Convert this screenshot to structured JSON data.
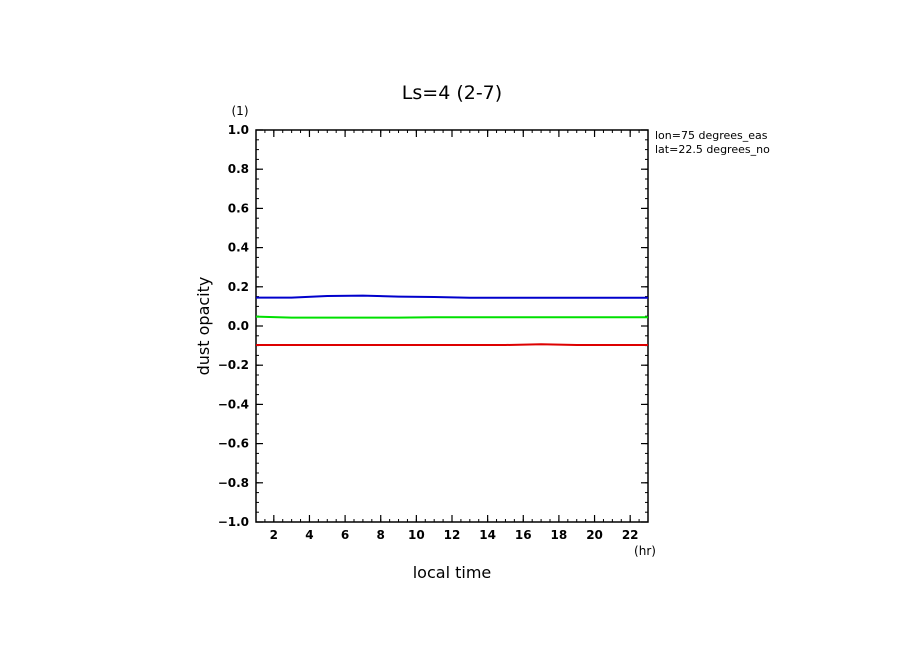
{
  "chart_data": {
    "type": "line",
    "title": "Ls=4 (2-7)",
    "xlabel": "local time",
    "ylabel": "dust opacity",
    "x_unit": "(hr)",
    "y_unit": "(1)",
    "annotations": [
      "lon=75 degrees_eas",
      "lat=22.5 degrees_no"
    ],
    "xlim": [
      1,
      23
    ],
    "ylim": [
      -1.0,
      1.0
    ],
    "x_ticks": [
      2,
      4,
      6,
      8,
      10,
      12,
      14,
      16,
      18,
      20,
      22
    ],
    "y_ticks": [
      "−1.0",
      "−0.8",
      "−0.6",
      "−0.4",
      "−0.2",
      "0.0",
      "0.2",
      "0.4",
      "0.6",
      "0.8",
      "1.0"
    ],
    "grid": false,
    "x": [
      1,
      3,
      5,
      7,
      9,
      11,
      13,
      15,
      17,
      19,
      21,
      23
    ],
    "series": [
      {
        "color": "#0000cc",
        "values": [
          0.145,
          0.145,
          0.153,
          0.155,
          0.15,
          0.148,
          0.144,
          0.144,
          0.144,
          0.144,
          0.144,
          0.144
        ]
      },
      {
        "color": "#00e000",
        "values": [
          0.048,
          0.043,
          0.043,
          0.043,
          0.043,
          0.045,
          0.045,
          0.045,
          0.045,
          0.045,
          0.045,
          0.045
        ]
      },
      {
        "color": "#dd0000",
        "values": [
          -0.097,
          -0.097,
          -0.097,
          -0.097,
          -0.097,
          -0.097,
          -0.097,
          -0.097,
          -0.093,
          -0.097,
          -0.097,
          -0.097
        ]
      }
    ]
  }
}
